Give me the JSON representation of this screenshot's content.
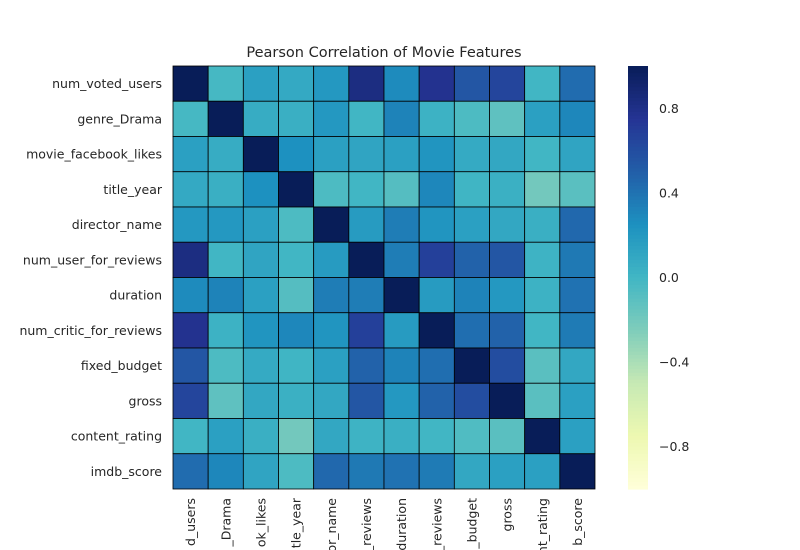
{
  "chart_data": {
    "type": "heatmap",
    "title": "Pearson Correlation of Movie Features",
    "row_labels": [
      "num_voted_users",
      "genre_Drama",
      "movie_facebook_likes",
      "title_year",
      "director_name",
      "num_user_for_reviews",
      "duration",
      "num_critic_for_reviews",
      "fixed_budget",
      "gross",
      "content_rating",
      "imdb_score"
    ],
    "column_tick_labels": [
      "d_users",
      "_Drama",
      "ok_likes",
      "tle_year",
      "or_name",
      "_reviews",
      "duration",
      "_reviews",
      "_budget",
      "gross",
      "nt_rating",
      "b_score"
    ],
    "values": [
      [
        1.0,
        -0.02,
        0.15,
        0.09,
        0.2,
        0.83,
        0.28,
        0.77,
        0.55,
        0.65,
        0.0,
        0.43
      ],
      [
        -0.02,
        1.0,
        0.07,
        0.05,
        0.2,
        0.0,
        0.32,
        0.03,
        -0.05,
        -0.12,
        0.15,
        0.3
      ],
      [
        0.15,
        0.07,
        1.0,
        0.25,
        0.15,
        0.12,
        0.15,
        0.22,
        0.08,
        0.1,
        0.0,
        0.12
      ],
      [
        0.09,
        0.05,
        0.25,
        1.0,
        -0.05,
        0.0,
        -0.08,
        0.3,
        0.01,
        0.04,
        -0.2,
        -0.1
      ],
      [
        0.2,
        0.2,
        0.15,
        -0.05,
        1.0,
        0.18,
        0.35,
        0.22,
        0.15,
        0.1,
        0.05,
        0.45
      ],
      [
        0.83,
        0.0,
        0.12,
        0.0,
        0.18,
        1.0,
        0.35,
        0.68,
        0.48,
        0.55,
        0.02,
        0.37
      ],
      [
        0.28,
        0.32,
        0.15,
        -0.08,
        0.35,
        0.35,
        1.0,
        0.18,
        0.32,
        0.2,
        0.03,
        0.4
      ],
      [
        0.77,
        0.03,
        0.22,
        0.3,
        0.22,
        0.68,
        0.18,
        1.0,
        0.42,
        0.48,
        0.0,
        0.36
      ],
      [
        0.55,
        -0.05,
        0.08,
        0.01,
        0.15,
        0.48,
        0.32,
        0.42,
        1.0,
        0.6,
        -0.1,
        0.1
      ],
      [
        0.65,
        -0.12,
        0.1,
        0.04,
        0.1,
        0.55,
        0.2,
        0.48,
        0.6,
        1.0,
        -0.1,
        0.15
      ],
      [
        0.0,
        0.15,
        0.05,
        -0.2,
        0.1,
        0.02,
        0.05,
        0.0,
        -0.06,
        -0.1,
        1.0,
        0.15
      ],
      [
        0.43,
        0.3,
        0.12,
        -0.05,
        0.45,
        0.37,
        0.4,
        0.36,
        0.1,
        0.15,
        0.15,
        1.0
      ]
    ],
    "vmin": -1.0,
    "vmax": 1.0,
    "colormap": "YlGnBu",
    "colormap_stops": [
      "#ffffd9",
      "#edf8b1",
      "#c7e9b4",
      "#7fcdbb",
      "#41b6c4",
      "#1d91c0",
      "#225ea8",
      "#253494",
      "#081d58"
    ],
    "colorbar_ticks": [
      -0.8,
      -0.4,
      0.0,
      0.4,
      0.8
    ],
    "colorbar_tick_labels": [
      "−0.8",
      "−0.4",
      "0.0",
      "0.4",
      "0.8"
    ],
    "grid_line_color": "#000000"
  }
}
